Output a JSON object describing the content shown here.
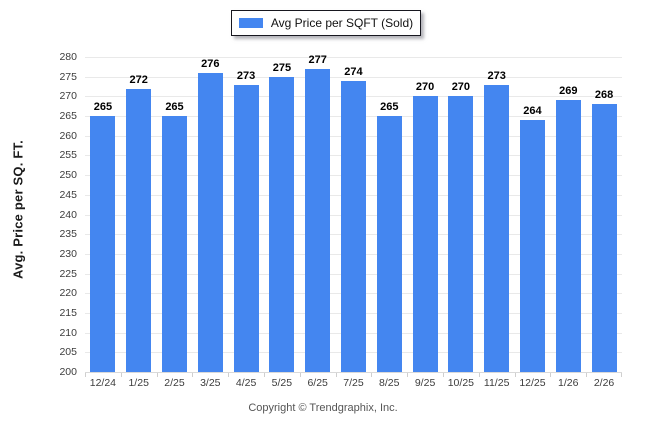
{
  "legend": {
    "label": "Avg Price per SQFT (Sold)",
    "swatch_color": "#4486f0"
  },
  "footer": {
    "copyright": "Copyright © Trendgraphix, Inc."
  },
  "colors": {
    "bar": "#4486f0",
    "gridline": "#e9e9e9",
    "legend_border": "#17171f"
  },
  "chart_data": {
    "type": "bar",
    "title": "",
    "categories": [
      "12/24",
      "1/25",
      "2/25",
      "3/25",
      "4/25",
      "5/25",
      "6/25",
      "7/25",
      "8/25",
      "9/25",
      "10/25",
      "11/25",
      "12/25",
      "1/26",
      "2/26"
    ],
    "values": [
      265,
      272,
      265,
      276,
      273,
      275,
      277,
      274,
      265,
      270,
      270,
      273,
      264,
      269,
      268
    ],
    "xlabel": "",
    "ylabel": "Avg. Price per SQ. FT.",
    "ylim": [
      200,
      280
    ],
    "yticks": [
      200,
      205,
      210,
      215,
      220,
      225,
      230,
      235,
      240,
      245,
      250,
      255,
      260,
      265,
      270,
      275,
      280
    ],
    "grid": "horizontal",
    "legend_position": "top-center",
    "value_labels": true
  }
}
